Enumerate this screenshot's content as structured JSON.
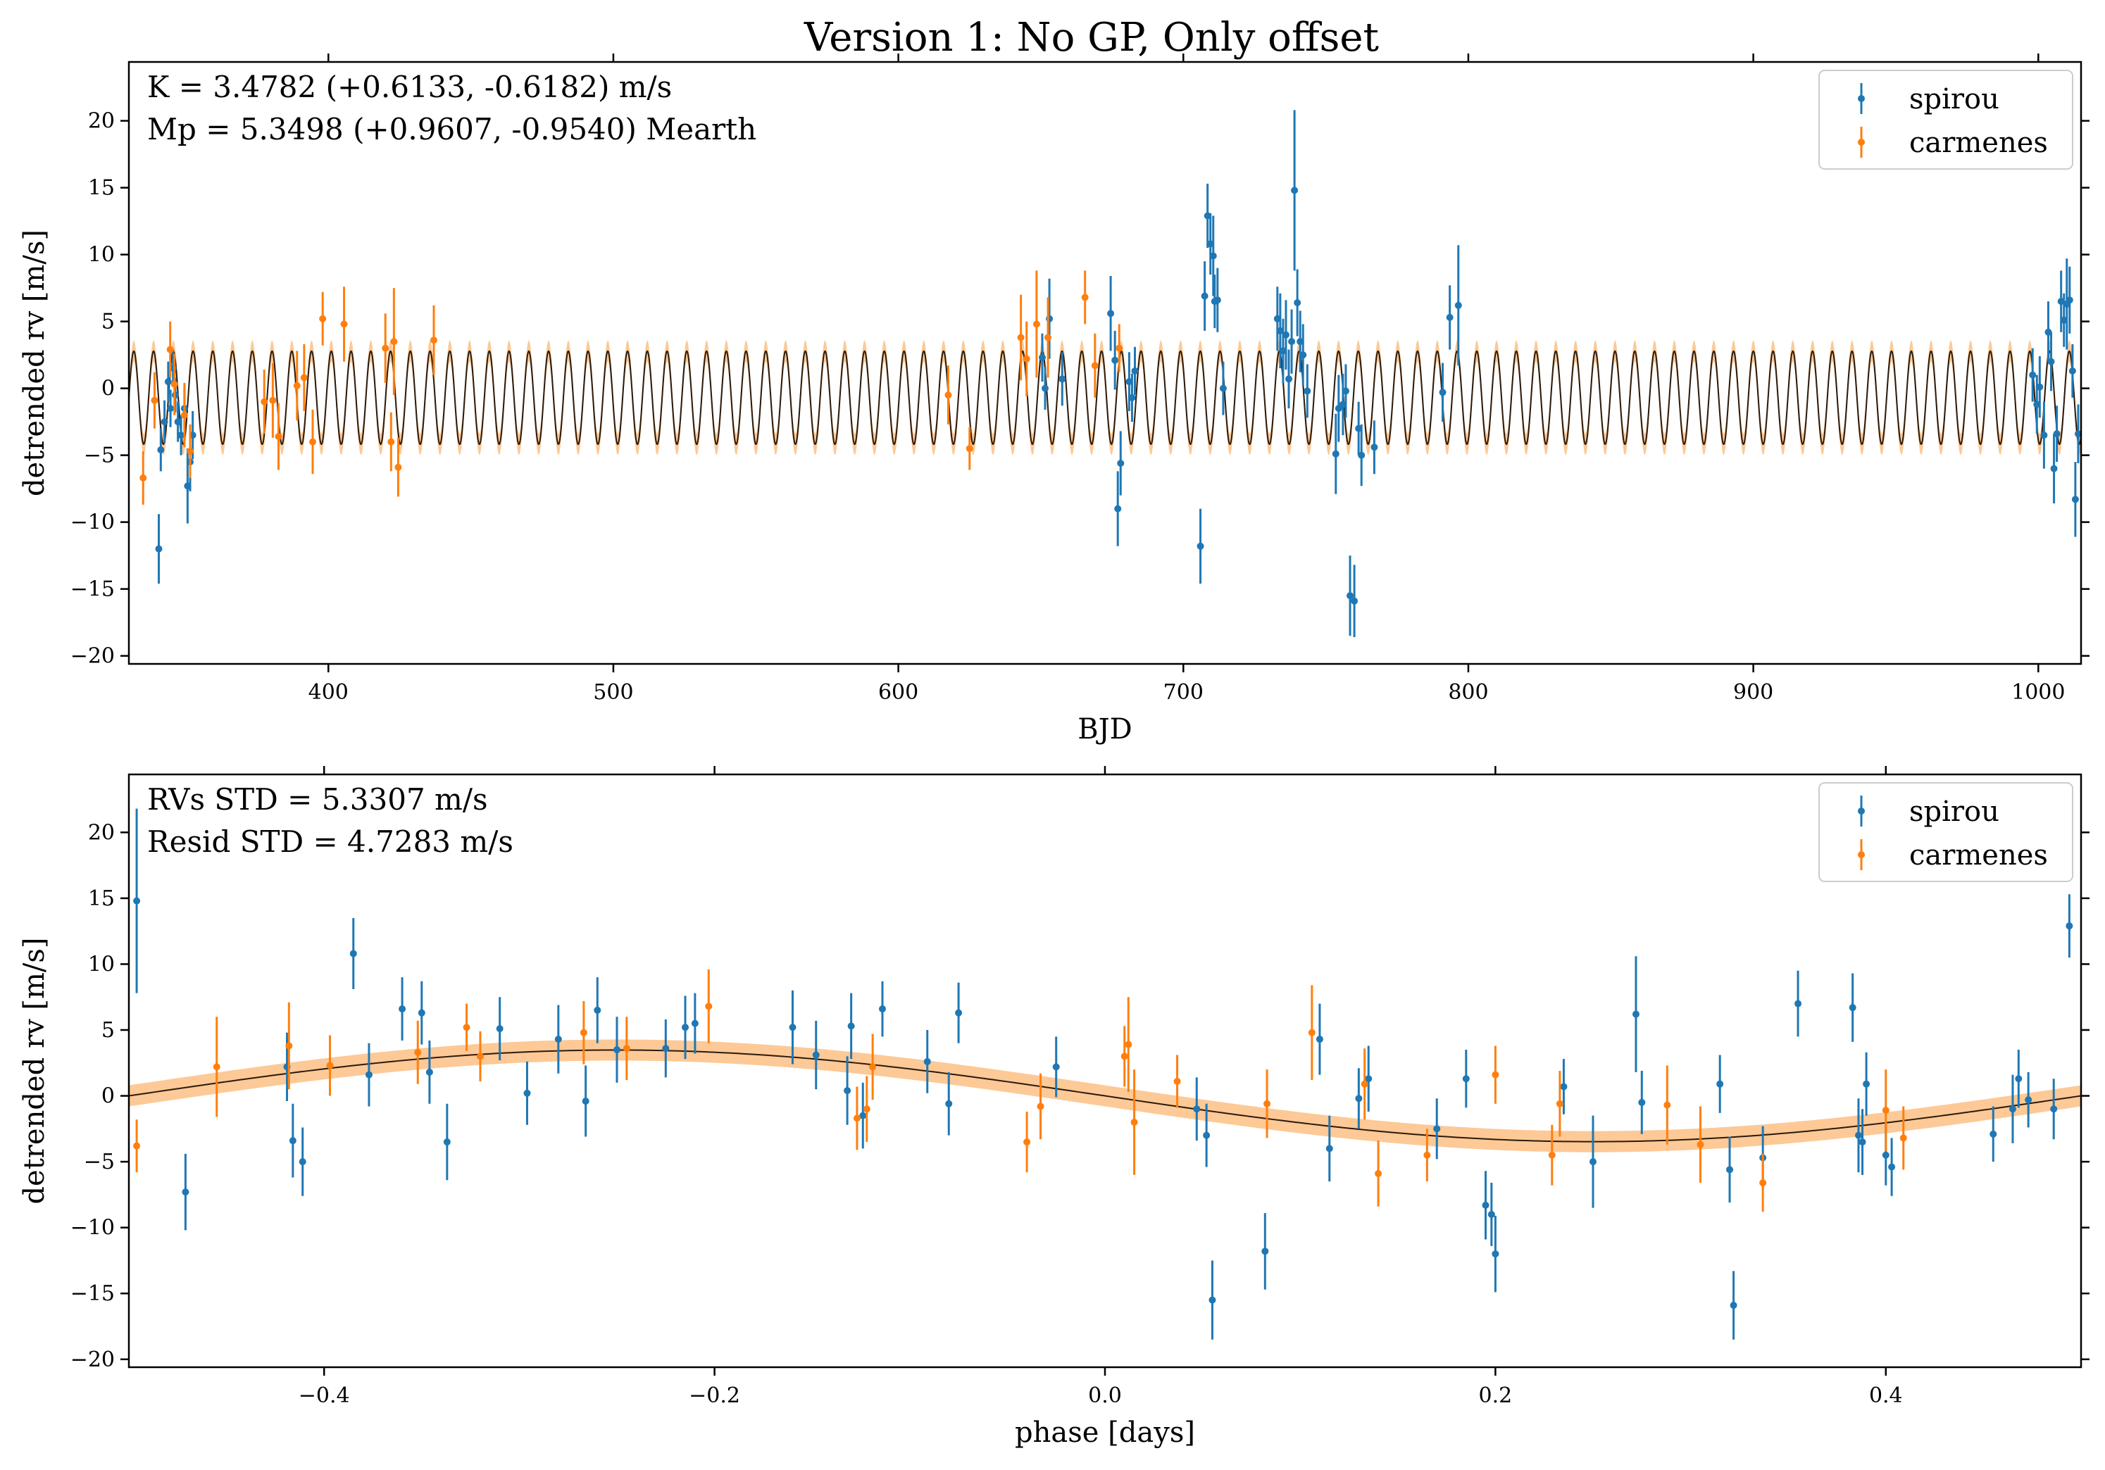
{
  "figure": {
    "suptitle": "Version 1: No GP, Only offset"
  },
  "colors": {
    "spirou": "#1f77b4",
    "carmenes": "#ff7f0e",
    "model_line": "#2b1a0d",
    "model_band": "#fdbf84"
  },
  "chart_data": [
    {
      "type": "scatter",
      "panel": "top",
      "xlabel": "BJD",
      "ylabel": "detrended rv [m/s]",
      "xlim": [
        330,
        1015
      ],
      "ylim": [
        -20.6,
        24.4
      ],
      "xticks": [
        400,
        500,
        600,
        700,
        800,
        900,
        1000
      ],
      "yticks": [
        -20,
        -15,
        -10,
        -5,
        0,
        5,
        10,
        15,
        20
      ],
      "grid": false,
      "legend": "top-right",
      "annotations": [
        "K = 3.4782 (+0.6133, -0.6182) m/s",
        "Mp = 5.3498 (+0.9607, -0.9540) Mearth"
      ],
      "model": {
        "kind": "sinusoid",
        "amplitude": 3.4782,
        "period_days": 6.93,
        "band_halfwidth": 0.8
      },
      "series": [
        {
          "name": "spirou",
          "points": [
            [
              340.5,
              -12.0,
              2.6
            ],
            [
              341.2,
              -4.6,
              1.6
            ],
            [
              342.5,
              -2.5,
              1.6
            ],
            [
              343.8,
              0.5,
              1.5
            ],
            [
              344.6,
              -1.5,
              1.4
            ],
            [
              345.5,
              1.5,
              1.4
            ],
            [
              346.3,
              -0.5,
              1.3
            ],
            [
              347.2,
              -2.5,
              1.5
            ],
            [
              348.3,
              -3.5,
              1.5
            ],
            [
              349.5,
              -1.5,
              1.6
            ],
            [
              350.6,
              -7.3,
              2.8
            ],
            [
              351.5,
              -5.5,
              2.2
            ],
            [
              352.4,
              -3.5,
              1.8
            ],
            [
              650.5,
              2.3,
              1.8
            ],
            [
              651.5,
              0.0,
              1.6
            ],
            [
              653.0,
              5.2,
              3.0
            ],
            [
              657.5,
              0.7,
              2.0
            ],
            [
              674.5,
              5.6,
              2.8
            ],
            [
              676.0,
              2.1,
              2.2
            ],
            [
              677.0,
              -9.0,
              2.8
            ],
            [
              678.0,
              -5.6,
              2.4
            ],
            [
              681.0,
              0.5,
              2.2
            ],
            [
              682.0,
              -0.7,
              1.8
            ],
            [
              683.0,
              1.3,
              1.8
            ],
            [
              706.0,
              -11.8,
              2.8
            ],
            [
              707.5,
              6.9,
              2.6
            ],
            [
              708.5,
              12.9,
              2.4
            ],
            [
              709.5,
              10.8,
              2.3
            ],
            [
              710.5,
              9.9,
              3.0
            ],
            [
              711.0,
              6.5,
              2.0
            ],
            [
              712.0,
              6.6,
              2.4
            ],
            [
              714.0,
              0.0,
              2.0
            ],
            [
              733.0,
              5.2,
              2.4
            ],
            [
              734.0,
              4.3,
              2.8
            ],
            [
              735.0,
              2.8,
              2.4
            ],
            [
              736.0,
              4.0,
              2.6
            ],
            [
              737.0,
              0.7,
              2.2
            ],
            [
              738.0,
              3.5,
              2.4
            ],
            [
              739.0,
              14.8,
              6.0
            ],
            [
              740.0,
              6.4,
              2.5
            ],
            [
              741.0,
              3.5,
              2.3
            ],
            [
              742.0,
              2.5,
              2.3
            ],
            [
              743.5,
              -0.2,
              2.0
            ],
            [
              753.5,
              -4.9,
              3.0
            ],
            [
              754.5,
              -1.5,
              2.5
            ],
            [
              756.0,
              -1.2,
              2.3
            ],
            [
              757.0,
              -0.2,
              2.0
            ],
            [
              758.5,
              -15.5,
              3.0
            ],
            [
              760.0,
              -15.9,
              2.7
            ],
            [
              761.5,
              -3.0,
              2.0
            ],
            [
              762.5,
              -5.0,
              2.3
            ],
            [
              767.0,
              -4.4,
              2.0
            ],
            [
              791.0,
              -0.3,
              2.2
            ],
            [
              793.5,
              5.3,
              2.4
            ],
            [
              796.5,
              6.2,
              4.5
            ],
            [
              998.0,
              1.0,
              2.0
            ],
            [
              999.5,
              -1.2,
              2.2
            ],
            [
              1000.5,
              0.1,
              2.3
            ],
            [
              1002.0,
              -3.5,
              2.5
            ],
            [
              1003.5,
              4.2,
              2.3
            ],
            [
              1004.5,
              2.0,
              2.2
            ],
            [
              1005.5,
              -6.0,
              2.6
            ],
            [
              1006.5,
              -3.4,
              2.1
            ],
            [
              1008.0,
              6.5,
              2.3
            ],
            [
              1009.0,
              5.1,
              2.0
            ],
            [
              1010.0,
              6.3,
              3.4
            ],
            [
              1011.0,
              6.6,
              2.5
            ],
            [
              1012.0,
              1.3,
              2.0
            ],
            [
              1013.0,
              -8.3,
              2.8
            ],
            [
              1014.0,
              -3.4,
              2.2
            ]
          ]
        },
        {
          "name": "carmenes",
          "points": [
            [
              335.0,
              -6.7,
              2.0
            ],
            [
              339.0,
              -0.9,
              2.1
            ],
            [
              344.5,
              2.9,
              2.1
            ],
            [
              346.0,
              0.3,
              2.3
            ],
            [
              349.5,
              -2.0,
              2.4
            ],
            [
              351.5,
              -4.7,
              2.0
            ],
            [
              377.5,
              -1.0,
              2.4
            ],
            [
              380.5,
              -0.9,
              2.8
            ],
            [
              382.5,
              -3.6,
              2.5
            ],
            [
              389.0,
              0.2,
              2.6
            ],
            [
              391.5,
              0.8,
              2.5
            ],
            [
              394.5,
              -4.0,
              2.4
            ],
            [
              398.0,
              5.2,
              2.0
            ],
            [
              405.5,
              4.8,
              2.8
            ],
            [
              420.0,
              3.0,
              2.6
            ],
            [
              422.0,
              -4.0,
              2.2
            ],
            [
              423.0,
              3.5,
              4.0
            ],
            [
              424.5,
              -5.9,
              2.2
            ],
            [
              437.0,
              3.6,
              2.6
            ],
            [
              617.5,
              -0.5,
              2.2
            ],
            [
              625.0,
              -4.5,
              1.6
            ],
            [
              643.0,
              3.8,
              3.2
            ],
            [
              645.0,
              2.2,
              2.8
            ],
            [
              648.5,
              4.8,
              4.0
            ],
            [
              652.5,
              3.8,
              3.0
            ],
            [
              665.5,
              6.8,
              2.0
            ],
            [
              669.0,
              1.7,
              2.4
            ],
            [
              677.5,
              3.0,
              1.8
            ]
          ]
        }
      ]
    },
    {
      "type": "scatter",
      "panel": "bottom",
      "xlabel": "phase [days]",
      "ylabel": "detrended rv [m/s]",
      "xlim": [
        -0.5,
        0.5
      ],
      "ylim": [
        -20.6,
        24.4
      ],
      "xticks": [
        -0.4,
        -0.2,
        0.0,
        0.2,
        0.4
      ],
      "xtick_labels": [
        "−0.4",
        "−0.2",
        "0.0",
        "0.2",
        "0.4"
      ],
      "yticks": [
        -20,
        -15,
        -10,
        -5,
        0,
        5,
        10,
        15,
        20
      ],
      "grid": false,
      "legend": "top-right",
      "annotations": [
        "RVs STD = 5.3307 m/s",
        "Resid STD = 4.7283 m/s"
      ],
      "model": {
        "kind": "sinusoid_phase",
        "amplitude": 3.4782,
        "band_halfwidth": 0.8
      },
      "series": [
        {
          "name": "spirou",
          "points": [
            [
              -0.496,
              14.8,
              7.0
            ],
            [
              -0.471,
              -7.3,
              2.9
            ],
            [
              -0.419,
              2.2,
              2.6
            ],
            [
              -0.416,
              -3.4,
              2.8
            ],
            [
              -0.411,
              -5.0,
              2.6
            ],
            [
              -0.385,
              10.8,
              2.7
            ],
            [
              -0.377,
              1.6,
              2.4
            ],
            [
              -0.36,
              6.6,
              2.4
            ],
            [
              -0.35,
              6.3,
              2.4
            ],
            [
              -0.346,
              1.8,
              2.4
            ],
            [
              -0.337,
              -3.5,
              2.9
            ],
            [
              -0.31,
              5.1,
              2.4
            ],
            [
              -0.296,
              0.2,
              2.4
            ],
            [
              -0.28,
              4.3,
              2.6
            ],
            [
              -0.266,
              -0.4,
              2.7
            ],
            [
              -0.26,
              6.5,
              2.5
            ],
            [
              -0.25,
              3.5,
              2.5
            ],
            [
              -0.225,
              3.6,
              2.2
            ],
            [
              -0.215,
              5.2,
              2.4
            ],
            [
              -0.21,
              5.5,
              2.3
            ],
            [
              -0.16,
              5.2,
              2.8
            ],
            [
              -0.148,
              3.1,
              2.6
            ],
            [
              -0.132,
              0.4,
              2.6
            ],
            [
              -0.13,
              5.3,
              2.5
            ],
            [
              -0.124,
              -1.5,
              2.5
            ],
            [
              -0.114,
              6.6,
              2.1
            ],
            [
              -0.091,
              2.6,
              2.4
            ],
            [
              -0.08,
              -0.6,
              2.4
            ],
            [
              -0.075,
              6.3,
              2.3
            ],
            [
              -0.025,
              2.2,
              2.3
            ],
            [
              0.047,
              -1.0,
              2.4
            ],
            [
              0.052,
              -3.0,
              2.4
            ],
            [
              0.055,
              -15.5,
              3.0
            ],
            [
              0.082,
              -11.8,
              2.9
            ],
            [
              0.11,
              4.3,
              2.7
            ],
            [
              0.115,
              -4.0,
              2.5
            ],
            [
              0.13,
              -0.2,
              2.3
            ],
            [
              0.135,
              1.3,
              2.5
            ],
            [
              0.17,
              -2.5,
              2.3
            ],
            [
              0.185,
              1.3,
              2.2
            ],
            [
              0.195,
              -8.3,
              2.6
            ],
            [
              0.198,
              -9.0,
              2.4
            ],
            [
              0.2,
              -12.0,
              2.9
            ],
            [
              0.235,
              0.7,
              2.1
            ],
            [
              0.25,
              -5.0,
              3.5
            ],
            [
              0.272,
              6.2,
              4.4
            ],
            [
              0.275,
              -0.5,
              2.4
            ],
            [
              0.315,
              0.9,
              2.2
            ],
            [
              0.32,
              -5.6,
              2.5
            ],
            [
              0.322,
              -15.9,
              2.6
            ],
            [
              0.337,
              -4.7,
              2.4
            ],
            [
              0.355,
              7.0,
              2.5
            ],
            [
              0.383,
              6.7,
              2.6
            ],
            [
              0.386,
              -3.0,
              2.8
            ],
            [
              0.388,
              -3.5,
              2.5
            ],
            [
              0.39,
              0.9,
              2.4
            ],
            [
              0.4,
              -4.5,
              2.3
            ],
            [
              0.403,
              -5.4,
              2.2
            ],
            [
              0.455,
              -2.9,
              2.1
            ],
            [
              0.465,
              -1.0,
              2.6
            ],
            [
              0.468,
              1.3,
              2.2
            ],
            [
              0.473,
              -0.3,
              2.1
            ],
            [
              0.486,
              -1.0,
              2.3
            ],
            [
              0.494,
              12.9,
              2.4
            ]
          ]
        },
        {
          "name": "carmenes",
          "points": [
            [
              -0.496,
              -3.8,
              2.0
            ],
            [
              -0.455,
              2.2,
              3.8
            ],
            [
              -0.418,
              3.8,
              3.3
            ],
            [
              -0.397,
              2.3,
              2.3
            ],
            [
              -0.352,
              3.3,
              2.4
            ],
            [
              -0.327,
              5.2,
              1.8
            ],
            [
              -0.32,
              3.0,
              1.9
            ],
            [
              -0.267,
              4.8,
              2.4
            ],
            [
              -0.245,
              3.6,
              2.4
            ],
            [
              -0.203,
              6.8,
              2.8
            ],
            [
              -0.127,
              -1.7,
              2.4
            ],
            [
              -0.122,
              -1.0,
              2.5
            ],
            [
              -0.119,
              2.2,
              2.5
            ],
            [
              -0.04,
              -3.5,
              2.3
            ],
            [
              -0.033,
              -0.8,
              2.5
            ],
            [
              0.01,
              3.0,
              2.3
            ],
            [
              0.012,
              3.9,
              3.6
            ],
            [
              0.015,
              -2.0,
              4.0
            ],
            [
              0.037,
              1.1,
              2.0
            ],
            [
              0.083,
              -0.6,
              2.6
            ],
            [
              0.106,
              4.8,
              3.6
            ],
            [
              0.133,
              0.9,
              2.7
            ],
            [
              0.14,
              -5.9,
              2.5
            ],
            [
              0.165,
              -4.5,
              2.0
            ],
            [
              0.2,
              1.6,
              2.2
            ],
            [
              0.229,
              -4.5,
              2.3
            ],
            [
              0.233,
              -0.6,
              2.5
            ],
            [
              0.288,
              -0.7,
              3.0
            ],
            [
              0.305,
              -3.7,
              2.9
            ],
            [
              0.337,
              -6.6,
              2.2
            ],
            [
              0.4,
              -1.1,
              3.1
            ],
            [
              0.409,
              -3.2,
              2.4
            ]
          ]
        }
      ]
    }
  ]
}
